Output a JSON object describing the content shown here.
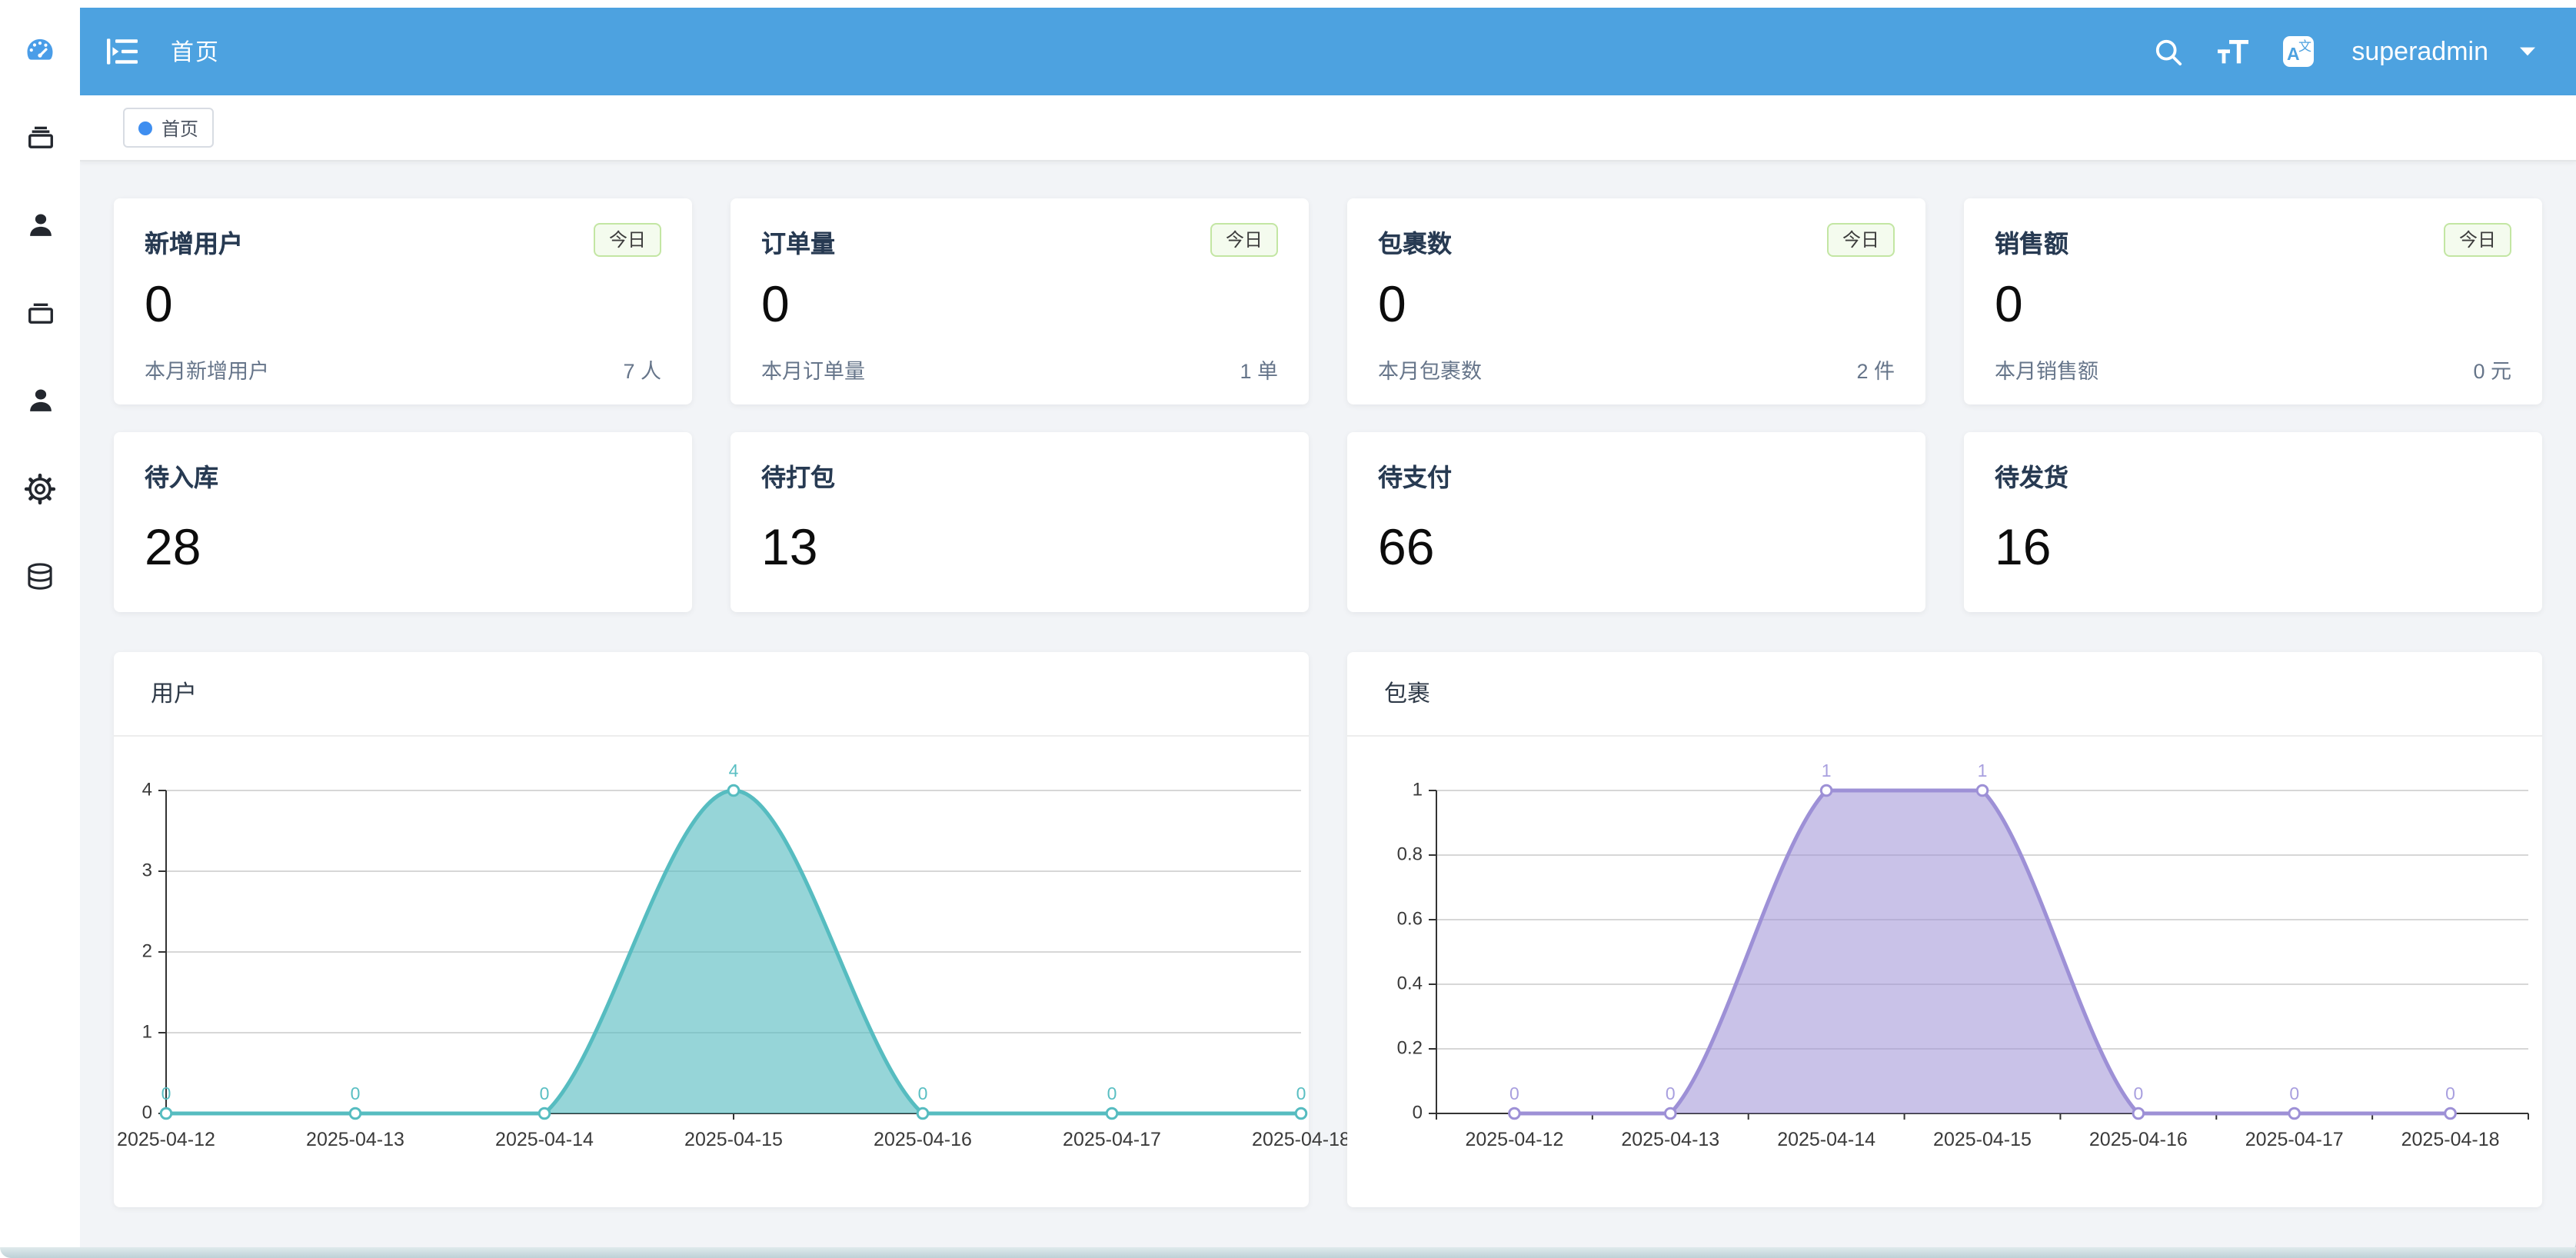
{
  "header": {
    "breadcrumb": "首页",
    "username": "superadmin",
    "bar_color": "#4da2e0"
  },
  "tabbar": {
    "tags": [
      {
        "label": "首页",
        "active": true
      }
    ]
  },
  "sidebar": {
    "items": [
      {
        "icon": "dashboard-icon",
        "active": true
      },
      {
        "icon": "orders-box-icon",
        "active": false
      },
      {
        "icon": "user-icon",
        "active": false
      },
      {
        "icon": "package-box-icon",
        "active": false
      },
      {
        "icon": "customer-icon",
        "active": false
      },
      {
        "icon": "settings-gear-icon",
        "active": false
      },
      {
        "icon": "database-icon",
        "active": false
      }
    ]
  },
  "stat_cards": [
    {
      "title": "新增用户",
      "badge": "今日",
      "value": "0",
      "footer_label": "本月新增用户",
      "footer_value": "7 人"
    },
    {
      "title": "订单量",
      "badge": "今日",
      "value": "0",
      "footer_label": "本月订单量",
      "footer_value": "1 单"
    },
    {
      "title": "包裹数",
      "badge": "今日",
      "value": "0",
      "footer_label": "本月包裹数",
      "footer_value": "2 件"
    },
    {
      "title": "销售额",
      "badge": "今日",
      "value": "0",
      "footer_label": "本月销售额",
      "footer_value": "0 元"
    }
  ],
  "pending_cards": [
    {
      "title": "待入库",
      "value": "28"
    },
    {
      "title": "待打包",
      "value": "13"
    },
    {
      "title": "待支付",
      "value": "66"
    },
    {
      "title": "待发货",
      "value": "16"
    }
  ],
  "chart_data": [
    {
      "type": "area",
      "title": "用户",
      "x": [
        "2025-04-12",
        "2025-04-13",
        "2025-04-14",
        "2025-04-15",
        "2025-04-16",
        "2025-04-17",
        "2025-04-18"
      ],
      "values": [
        0,
        0,
        0,
        4,
        0,
        0,
        0
      ],
      "ylim": [
        0,
        4
      ],
      "yticks": [
        0,
        1,
        2,
        3,
        4
      ],
      "boundary_gap": false,
      "smooth": true,
      "grid": true,
      "legend": "none",
      "line_color": "#56bcc0",
      "fill_color": "rgba(86,188,192,0.62)",
      "label_color": "#5abfc3"
    },
    {
      "type": "area",
      "title": "包裹",
      "x": [
        "2025-04-12",
        "2025-04-13",
        "2025-04-14",
        "2025-04-15",
        "2025-04-16",
        "2025-04-17",
        "2025-04-18"
      ],
      "values": [
        0,
        0,
        1,
        1,
        0,
        0,
        0
      ],
      "ylim": [
        0,
        1
      ],
      "yticks": [
        0,
        0.2,
        0.4,
        0.6,
        0.8,
        1
      ],
      "boundary_gap": true,
      "smooth": true,
      "grid": true,
      "legend": "none",
      "line_color": "#9d90d6",
      "fill_color": "rgba(157,144,214,0.55)",
      "label_color": "#a89fdf"
    }
  ],
  "colors": {
    "accent_blue": "#409eff",
    "badge_bg": "#f4fbee",
    "badge_border": "#c3e6a3",
    "axis": "#333333",
    "gridline": "#d7d7d7"
  }
}
